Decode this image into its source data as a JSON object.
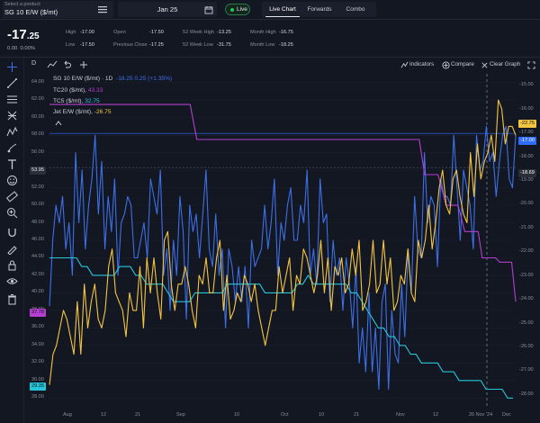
{
  "product": {
    "label": "Select a product",
    "value": "SG 10 E/W ($/mt)"
  },
  "date": {
    "value": "Jan 25"
  },
  "live": {
    "label": "Live"
  },
  "tabs": [
    {
      "label": "Live Chart"
    },
    {
      "label": "Forwards"
    },
    {
      "label": "Combo"
    }
  ],
  "quote": {
    "price_main": "-17",
    "price_dec": ".25",
    "change_abs": "0.00",
    "change_pct": "0.00%",
    "stats": [
      {
        "label": "High",
        "value": "-17.00"
      },
      {
        "label": "Low",
        "value": "-17.50"
      },
      {
        "label": "Open",
        "value": "-17.50"
      },
      {
        "label": "Previous Close",
        "value": "-17.25"
      },
      {
        "label": "52 Week High",
        "value": "-13.25"
      },
      {
        "label": "52 Week Low",
        "value": "-31.75"
      },
      {
        "label": "Month High",
        "value": "-16.75"
      },
      {
        "label": "Month Low",
        "value": "-18.25"
      }
    ]
  },
  "chart_toolbar": {
    "interval": "D",
    "indicators": "Indicators",
    "compare": "Compare",
    "clear": "Clear Graph"
  },
  "legend": {
    "main_name": "SG 10 E/W ($/mt) · 1D",
    "main_values": "-18.25  0.25 (+1.35%)",
    "items": [
      {
        "name": "TC20 ($/mt),",
        "value": "43.33"
      },
      {
        "name": "TC5 ($/mt),",
        "value": "32.75"
      },
      {
        "name": "Jet E/W ($/mt),",
        "value": "-26.75"
      }
    ]
  },
  "chart_data": {
    "type": "line",
    "x_labels": [
      "Aug",
      "12",
      "21",
      "Sep",
      "10",
      "Oct",
      "10",
      "21",
      "Nov",
      "12",
      "26 Nov '24",
      "Dec"
    ],
    "left_axis": {
      "ticks": [
        "64.00",
        "62.00",
        "60.00",
        "58.00",
        "56.00",
        "54.00",
        "52.00",
        "50.00",
        "48.00",
        "46.00",
        "44.00",
        "42.00",
        "40.00",
        "38.00",
        "36.00",
        "34.00",
        "32.00",
        "30.00",
        "28.00"
      ],
      "range": [
        27,
        65
      ]
    },
    "right_axis": {
      "ticks": [
        "-15.00",
        "-16.00",
        "-17.00",
        "-18.00",
        "-19.00",
        "-20.00",
        "-21.00",
        "-22.00",
        "-23.00",
        "-24.00",
        "-25.00",
        "-26.00",
        "-27.00",
        "-28.00"
      ],
      "range": [
        -14.5,
        -28.5
      ]
    },
    "left_axis_labels": [
      {
        "value": "53.95",
        "color": "#2a2e39"
      },
      {
        "value": "37.78",
        "color": "#b43fd0"
      },
      {
        "value": "29.35",
        "color": "#26c6da"
      }
    ],
    "right_axis_labels": [
      {
        "value": "-22.75",
        "color": "#f5c542"
      },
      {
        "value": "-17.00",
        "color": "#2f6df6"
      },
      {
        "value": "-18.69",
        "color": "#2a2e39"
      }
    ],
    "series": [
      {
        "name": "SG 10 E/W ($/mt)",
        "axis": "left",
        "color": "#3d6fe6",
        "values": [
          38.5,
          46,
          50,
          48,
          51,
          45,
          48,
          42,
          56,
          48,
          54,
          45,
          50,
          53,
          58,
          49,
          55,
          45,
          51,
          47,
          53,
          42,
          48,
          49,
          51,
          50,
          44,
          44,
          46,
          48,
          44,
          53,
          51,
          49,
          54,
          42,
          45,
          38,
          46,
          42,
          51,
          47,
          37,
          50,
          47,
          49,
          44,
          49,
          54,
          45,
          43,
          49,
          42,
          45,
          36,
          45,
          43,
          39,
          43,
          39,
          43,
          36,
          46,
          43,
          44,
          45,
          50,
          45,
          48,
          53,
          42,
          48,
          46,
          50,
          52,
          46,
          46,
          50,
          48,
          54,
          42,
          45,
          41,
          53,
          48,
          49,
          39,
          46,
          42,
          44,
          38,
          44,
          41,
          36,
          43,
          32,
          36,
          31,
          40,
          31,
          36,
          29,
          39,
          41,
          29,
          38,
          33,
          32,
          41,
          35,
          45,
          40,
          51,
          45,
          44,
          56,
          48,
          51,
          50,
          43,
          53,
          51,
          51,
          50,
          58,
          52,
          46,
          54,
          52,
          50,
          45,
          58,
          54,
          55,
          59,
          55,
          56,
          51,
          55,
          58,
          59,
          53,
          52,
          58
        ]
      },
      {
        "name": "TC20 ($/mt)",
        "axis": "left",
        "color": "#b43fd0",
        "points": [
          [
            0,
            61.5
          ],
          [
            105,
            61.5
          ],
          [
            110,
            57.5
          ],
          [
            276,
            57.5
          ],
          [
            280,
            53.5
          ],
          [
            290,
            53.5
          ],
          [
            296,
            50
          ],
          [
            305,
            50
          ],
          [
            310,
            47
          ],
          [
            320,
            47
          ],
          [
            323,
            44
          ],
          [
            333,
            44
          ],
          [
            336,
            43.5
          ],
          [
            345,
            43.5
          ],
          [
            348,
            39
          ]
        ]
      },
      {
        "name": "TC5 ($/mt)",
        "axis": "left",
        "color": "#26c6da",
        "values": [
          44,
          44,
          44,
          44,
          44,
          44,
          43,
          43,
          42,
          42,
          42,
          42,
          42,
          43,
          43,
          43,
          42,
          42,
          41,
          41,
          41,
          41,
          40,
          39,
          39,
          39,
          39,
          40,
          40,
          40,
          40,
          40,
          40,
          41,
          41,
          41,
          41,
          41,
          41,
          41,
          40,
          40,
          40,
          40,
          40,
          40,
          41,
          41,
          42,
          41,
          41,
          41,
          41,
          41,
          41,
          41,
          40,
          40,
          39,
          38,
          37,
          36,
          36,
          35,
          35,
          34,
          34,
          33,
          33,
          32,
          32,
          32,
          32,
          31,
          31,
          31,
          30,
          30,
          30,
          30,
          30,
          29,
          29,
          29,
          29,
          28,
          28
        ]
      },
      {
        "name": "Jet E/W ($/mt)",
        "axis": "left",
        "color": "#f5c542",
        "values": [
          29.5,
          33,
          34,
          36,
          38,
          37,
          35,
          33,
          39,
          33,
          41,
          36,
          39,
          41,
          37,
          36,
          38,
          43,
          45,
          40,
          39,
          38,
          35,
          40,
          38,
          38,
          43,
          36,
          44,
          40,
          44,
          40,
          37,
          46,
          47,
          41,
          38,
          41,
          41,
          43,
          41,
          38,
          36,
          42,
          41,
          44,
          40,
          40,
          44,
          46,
          38,
          42,
          37,
          38,
          40,
          39,
          42,
          41,
          39,
          41,
          38,
          36,
          34,
          36,
          38,
          38,
          43,
          40,
          42,
          44,
          38,
          42,
          41,
          45,
          44,
          42,
          40,
          42,
          46,
          40,
          44,
          38,
          43,
          42,
          44,
          40,
          41,
          45,
          42,
          46,
          38,
          39,
          41,
          46,
          40,
          41,
          46,
          41,
          44,
          38,
          39,
          42,
          41,
          45,
          40,
          39,
          46,
          44,
          46,
          50,
          45,
          48,
          52,
          54,
          50,
          49,
          53,
          54,
          51,
          49,
          48,
          56,
          51,
          57,
          53,
          55,
          56,
          58,
          55,
          62,
          61,
          57,
          59,
          59,
          58
        ]
      }
    ],
    "horizontal_lines": [
      {
        "left_value": 58.2,
        "color": "#2f6df6"
      },
      {
        "left_value": 54.3,
        "color": "#555a66"
      }
    ],
    "vertical_marker": {
      "label": "26 Nov '24"
    }
  }
}
